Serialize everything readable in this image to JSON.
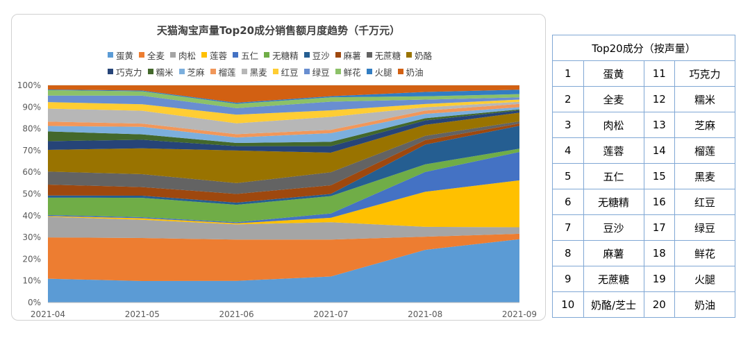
{
  "chart_data": {
    "type": "area",
    "stacked": true,
    "normalized": true,
    "title": "天猫淘宝声量Top20成分销售额月度趋势（千万元）",
    "categories": [
      "2021-04",
      "2021-05",
      "2021-06",
      "2021-07",
      "2021-08",
      "2021-09"
    ],
    "yticks": [
      "0%",
      "10%",
      "20%",
      "30%",
      "40%",
      "50%",
      "60%",
      "70%",
      "80%",
      "90%",
      "100%"
    ],
    "ylim": [
      0,
      100
    ],
    "grid": true,
    "legend_position": "top",
    "series": [
      {
        "name": "蛋黄",
        "color": "#5b9bd5",
        "values": [
          11,
          10,
          10,
          12,
          24,
          29
        ]
      },
      {
        "name": "全麦",
        "color": "#ed7d31",
        "values": [
          19,
          20,
          19,
          17,
          6,
          2.5
        ]
      },
      {
        "name": "肉松",
        "color": "#a5a5a5",
        "values": [
          9.5,
          8.5,
          7,
          8,
          4.5,
          3
        ]
      },
      {
        "name": "莲蓉",
        "color": "#ffc000",
        "values": [
          0.3,
          0.7,
          0.5,
          2,
          16,
          21.5
        ]
      },
      {
        "name": "五仁",
        "color": "#4472c4",
        "values": [
          0.5,
          0.5,
          0.5,
          2,
          9,
          13
        ]
      },
      {
        "name": "无糖精",
        "color": "#70ad47",
        "values": [
          8,
          9,
          8,
          8,
          3.5,
          1.5
        ]
      },
      {
        "name": "豆沙",
        "color": "#255e91",
        "values": [
          1,
          1,
          1,
          1,
          9,
          10.5
        ]
      },
      {
        "name": "麻薯",
        "color": "#9e480e",
        "values": [
          5,
          4,
          4,
          4,
          2,
          1
        ]
      },
      {
        "name": "无蔗糖",
        "color": "#636363",
        "values": [
          6,
          6,
          5,
          6,
          2,
          1
        ]
      },
      {
        "name": "奶酪",
        "color": "#997300",
        "values": [
          10,
          12,
          15,
          9,
          5,
          4
        ]
      },
      {
        "name": "巧克力",
        "color": "#264478",
        "values": [
          4,
          4,
          2,
          3,
          2,
          1
        ]
      },
      {
        "name": "糯米",
        "color": "#43682b",
        "values": [
          4.5,
          2.5,
          1.5,
          2,
          1,
          0.5
        ]
      },
      {
        "name": "芝麻",
        "color": "#7cafdd",
        "values": [
          2.5,
          3.5,
          2.5,
          4,
          2,
          1
        ]
      },
      {
        "name": "榴莲",
        "color": "#f1975a",
        "values": [
          2,
          1.5,
          1.5,
          1.5,
          1.5,
          1.5
        ]
      },
      {
        "name": "黑麦",
        "color": "#b7b7b7",
        "values": [
          6,
          6,
          5,
          6,
          1.5,
          1
        ]
      },
      {
        "name": "红豆",
        "color": "#ffcd33",
        "values": [
          3,
          3,
          4,
          3,
          1.5,
          1
        ]
      },
      {
        "name": "绿豆",
        "color": "#698ed0",
        "values": [
          3,
          4,
          3,
          4,
          2,
          1
        ]
      },
      {
        "name": "鲜花",
        "color": "#8cc168",
        "values": [
          2.5,
          2,
          2,
          2,
          1.5,
          1.5
        ]
      },
      {
        "name": "火腿",
        "color": "#327dc2",
        "values": [
          0.3,
          0.4,
          0.5,
          0.5,
          2,
          2
        ]
      },
      {
        "name": "奶油",
        "color": "#d26012",
        "values": [
          1.9,
          2.4,
          8,
          5,
          3,
          2
        ]
      }
    ]
  },
  "table": {
    "header": "Top20成分（按声量）",
    "rows": [
      [
        "1",
        "蛋黄",
        "11",
        "巧克力"
      ],
      [
        "2",
        "全麦",
        "12",
        "糯米"
      ],
      [
        "3",
        "肉松",
        "13",
        "芝麻"
      ],
      [
        "4",
        "莲蓉",
        "14",
        "榴莲"
      ],
      [
        "5",
        "五仁",
        "15",
        "黑麦"
      ],
      [
        "6",
        "无糖精",
        "16",
        "红豆"
      ],
      [
        "7",
        "豆沙",
        "17",
        "绿豆"
      ],
      [
        "8",
        "麻薯",
        "18",
        "鲜花"
      ],
      [
        "9",
        "无蔗糖",
        "19",
        "火腿"
      ],
      [
        "10",
        "奶酪/芝士",
        "20",
        "奶油"
      ]
    ]
  }
}
